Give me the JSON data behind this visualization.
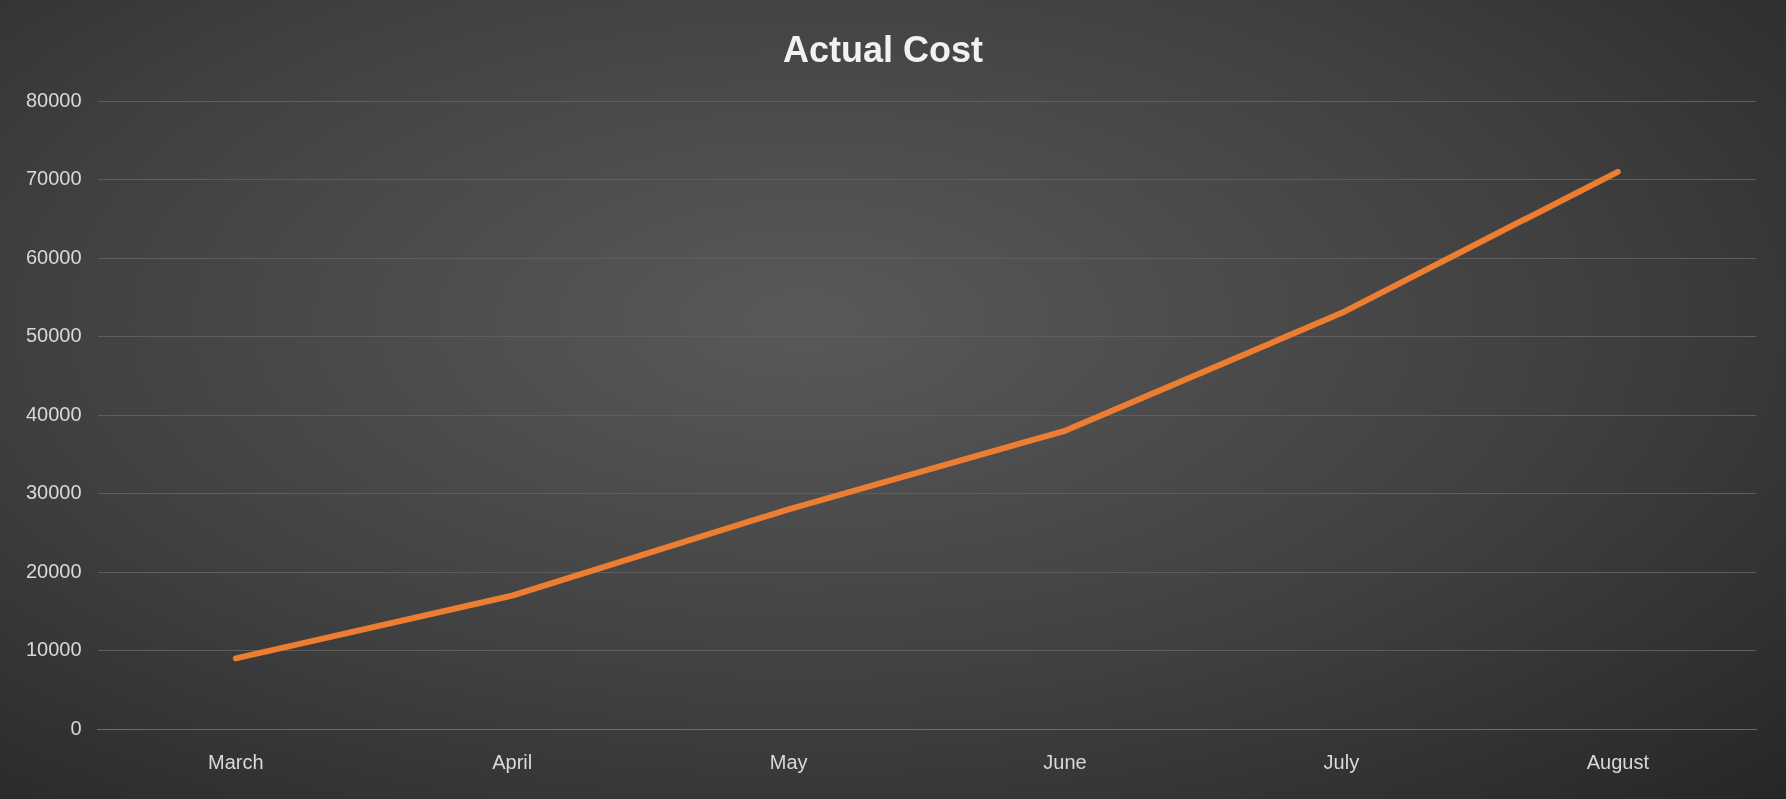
{
  "chart_data": {
    "type": "line",
    "title": "Actual Cost",
    "categories": [
      "March",
      "April",
      "May",
      "June",
      "July",
      "August"
    ],
    "values": [
      9000,
      17000,
      28000,
      38000,
      53000,
      71000
    ],
    "color": "#ed7d31",
    "ylim": [
      0,
      80000
    ],
    "yticks": [
      0,
      10000,
      20000,
      30000,
      40000,
      50000,
      60000,
      70000,
      80000
    ],
    "grid": "y",
    "legend": false,
    "marker": "none",
    "line_style": "solid"
  }
}
